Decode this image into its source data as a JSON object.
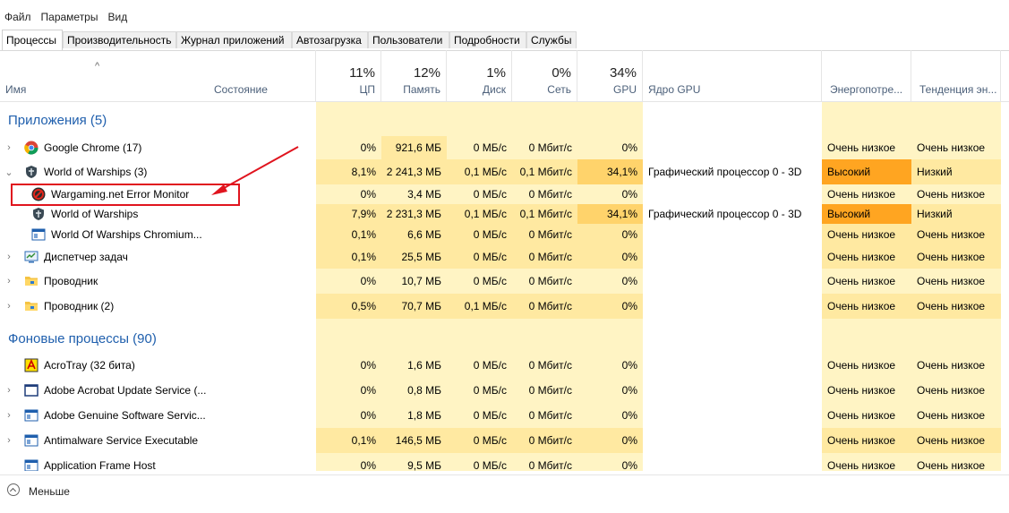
{
  "menu": [
    "Файл",
    "Параметры",
    "Вид"
  ],
  "tabs": [
    "Процессы",
    "Производительность",
    "Журнал приложений",
    "Автозагрузка",
    "Пользователи",
    "Подробности",
    "Службы"
  ],
  "columns": {
    "name": "Имя",
    "status": "Состояние",
    "cpu": {
      "pct": "11%",
      "label": "ЦП"
    },
    "mem": {
      "pct": "12%",
      "label": "Память"
    },
    "disk": {
      "pct": "1%",
      "label": "Диск"
    },
    "net": {
      "pct": "0%",
      "label": "Сеть"
    },
    "gpu": {
      "pct": "34%",
      "label": "GPU"
    },
    "gpu_engine": "Ядро GPU",
    "power": "Энергопотре...",
    "power_trend": "Тенденция эн..."
  },
  "groups": {
    "apps": "Приложения (5)",
    "background": "Фоновые процессы (90)"
  },
  "rows": [
    {
      "name": "Google Chrome (17)",
      "icon": "chrome-icon",
      "expand": "›",
      "cpu": "0%",
      "mem": "921,6 МБ",
      "disk": "0 МБ/с",
      "net": "0 Мбит/с",
      "gpu": "0%",
      "engine": "",
      "power": "Очень низкое",
      "trend": "Очень низкое"
    },
    {
      "name": "World of Warships (3)",
      "icon": "warships-icon",
      "expand": "⌄",
      "cpu": "8,1%",
      "mem": "2 241,3 МБ",
      "disk": "0,1 МБ/с",
      "net": "0,1 Мбит/с",
      "gpu": "34,1%",
      "engine": "Графический процессор 0 - 3D",
      "power": "Высокий",
      "trend": "Низкий"
    },
    {
      "name": "Wargaming.net Error Monitor",
      "icon": "wargaming-icon",
      "expand": "",
      "cpu": "0%",
      "mem": "3,4 МБ",
      "disk": "0 МБ/с",
      "net": "0 Мбит/с",
      "gpu": "0%",
      "engine": "",
      "power": "Очень низкое",
      "trend": "Очень низкое"
    },
    {
      "name": "World of Warships",
      "icon": "warships-icon",
      "expand": "",
      "cpu": "7,9%",
      "mem": "2 231,3 МБ",
      "disk": "0,1 МБ/с",
      "net": "0,1 Мбит/с",
      "gpu": "34,1%",
      "engine": "Графический процессор 0 - 3D",
      "power": "Высокий",
      "trend": "Низкий"
    },
    {
      "name": "World Of Warships Chromium...",
      "icon": "window-icon",
      "expand": "",
      "cpu": "0,1%",
      "mem": "6,6 МБ",
      "disk": "0 МБ/с",
      "net": "0 Мбит/с",
      "gpu": "0%",
      "engine": "",
      "power": "Очень низкое",
      "trend": "Очень низкое"
    },
    {
      "name": "Диспетчер задач",
      "icon": "task-manager-icon",
      "expand": "›",
      "cpu": "0,1%",
      "mem": "25,5 МБ",
      "disk": "0 МБ/с",
      "net": "0 Мбит/с",
      "gpu": "0%",
      "engine": "",
      "power": "Очень низкое",
      "trend": "Очень низкое"
    },
    {
      "name": "Проводник",
      "icon": "folder-icon",
      "expand": "›",
      "cpu": "0%",
      "mem": "10,7 МБ",
      "disk": "0 МБ/с",
      "net": "0 Мбит/с",
      "gpu": "0%",
      "engine": "",
      "power": "Очень низкое",
      "trend": "Очень низкое"
    },
    {
      "name": "Проводник (2)",
      "icon": "folder-icon",
      "expand": "›",
      "cpu": "0,5%",
      "mem": "70,7 МБ",
      "disk": "0,1 МБ/с",
      "net": "0 Мбит/с",
      "gpu": "0%",
      "engine": "",
      "power": "Очень низкое",
      "trend": "Очень низкое"
    },
    {
      "name": "AcroTray (32 бита)",
      "icon": "acrotray-icon",
      "expand": "",
      "cpu": "0%",
      "mem": "1,6 МБ",
      "disk": "0 МБ/с",
      "net": "0 Мбит/с",
      "gpu": "0%",
      "engine": "",
      "power": "Очень низкое",
      "trend": "Очень низкое"
    },
    {
      "name": "Adobe Acrobat Update Service (...",
      "icon": "service-icon",
      "expand": "›",
      "cpu": "0%",
      "mem": "0,8 МБ",
      "disk": "0 МБ/с",
      "net": "0 Мбит/с",
      "gpu": "0%",
      "engine": "",
      "power": "Очень низкое",
      "trend": "Очень низкое"
    },
    {
      "name": "Adobe Genuine Software Servic...",
      "icon": "window-icon",
      "expand": "›",
      "cpu": "0%",
      "mem": "1,8 МБ",
      "disk": "0 МБ/с",
      "net": "0 Мбит/с",
      "gpu": "0%",
      "engine": "",
      "power": "Очень низкое",
      "trend": "Очень низкое"
    },
    {
      "name": "Antimalware Service Executable",
      "icon": "window-icon",
      "expand": "›",
      "cpu": "0,1%",
      "mem": "146,5 МБ",
      "disk": "0 МБ/с",
      "net": "0 Мбит/с",
      "gpu": "0%",
      "engine": "",
      "power": "Очень низкое",
      "trend": "Очень низкое"
    },
    {
      "name": "Application Frame Host",
      "icon": "window-icon",
      "expand": "",
      "cpu": "0%",
      "mem": "9,5 МБ",
      "disk": "0 МБ/с",
      "net": "0 Мбит/с",
      "gpu": "0%",
      "engine": "",
      "power": "Очень низкое",
      "trend": "Очень низкое"
    }
  ],
  "footer": {
    "less_label": "Меньше"
  },
  "colors": {
    "heat_light": "#fff4c4",
    "heat_mid": "#ffe9a1",
    "heat_gpu": "#ffd36b",
    "power_high": "#ffa521",
    "trend_low": "#ffe9a1",
    "annotation": "#e0141e",
    "group_title": "#1f5fad"
  }
}
